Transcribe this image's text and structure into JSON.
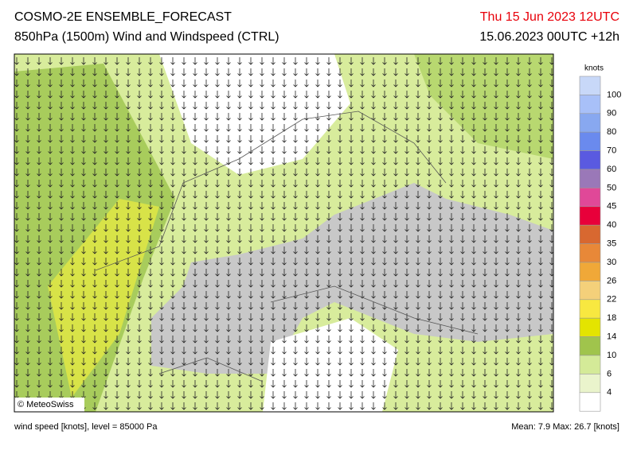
{
  "header": {
    "title": "COSMO-2E ENSEMBLE_FORECAST",
    "subtitle": "850hPa (1500m) Wind and Windspeed (CTRL)",
    "valid": "Thu 15 Jun 2023 12UTC",
    "run": "15.06.2023 00UTC +12h"
  },
  "map": {
    "copyright": "© MeteoSwiss"
  },
  "legend": {
    "unit": "knots",
    "levels": [
      100,
      90,
      80,
      70,
      60,
      50,
      45,
      40,
      35,
      30,
      26,
      22,
      18,
      14,
      10,
      6,
      4
    ],
    "colors": [
      "#c8d8f8",
      "#a8c0f8",
      "#88a8f0",
      "#6a8aee",
      "#5a5ae0",
      "#9a78b8",
      "#e04898",
      "#e8003a",
      "#d86830",
      "#e88838",
      "#f0a838",
      "#f4d07a",
      "#f8e840",
      "#e4e400",
      "#a0c44c",
      "#d4ea98",
      "#eaf4cc",
      "#ffffff"
    ]
  },
  "footer": {
    "left": "wind speed [knots], level = 85000 Pa",
    "stats": "Mean:  7.9 Max:  26.7 [knots]"
  }
}
